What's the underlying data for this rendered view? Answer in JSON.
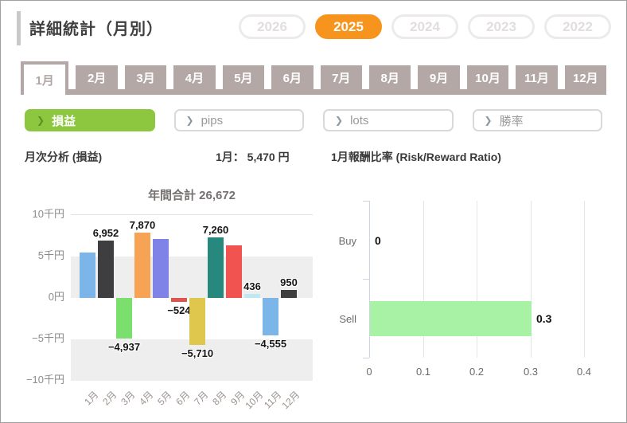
{
  "page": {
    "title": "詳細統計（月別）"
  },
  "years": [
    {
      "label": "2026",
      "active": false
    },
    {
      "label": "2025",
      "active": true
    },
    {
      "label": "2024",
      "active": false
    },
    {
      "label": "2023",
      "active": false
    },
    {
      "label": "2022",
      "active": false
    }
  ],
  "months": [
    {
      "label": "1月",
      "selected": true
    },
    {
      "label": "2月",
      "selected": false
    },
    {
      "label": "3月",
      "selected": false
    },
    {
      "label": "4月",
      "selected": false
    },
    {
      "label": "5月",
      "selected": false
    },
    {
      "label": "6月",
      "selected": false
    },
    {
      "label": "7月",
      "selected": false
    },
    {
      "label": "8月",
      "selected": false
    },
    {
      "label": "9月",
      "selected": false
    },
    {
      "label": "10月",
      "selected": false
    },
    {
      "label": "11月",
      "selected": false
    },
    {
      "label": "12月",
      "selected": false
    }
  ],
  "filters": [
    {
      "label": "損益",
      "active": true
    },
    {
      "label": "pips",
      "active": false
    },
    {
      "label": "lots",
      "active": false
    },
    {
      "label": "勝率",
      "active": false
    }
  ],
  "summary": {
    "left_title": "月次分析 (損益)",
    "month_value": "1月： 5,470 円",
    "right_title": "1月報酬比率 (Risk/Reward Ratio)"
  },
  "colors": {
    "accent_orange": "#f7941d",
    "taupe": "#b3a8a5",
    "filter_green": "#8dc63f",
    "band_gray": "#eeeeee",
    "sell_bar_green": "#a8f2a5"
  },
  "chart_data": [
    {
      "type": "bar",
      "title": "年間合計 26,672",
      "annual_total": 26672,
      "categories": [
        "1月",
        "2月",
        "3月",
        "4月",
        "5月",
        "6月",
        "7月",
        "8月",
        "9月",
        "10月",
        "11月",
        "12月"
      ],
      "values": [
        5470,
        6952,
        -4937,
        7870,
        7150,
        -524,
        -5710,
        7260,
        6310,
        436,
        -4555,
        950
      ],
      "labels": [
        "",
        "6,952",
        "−4,937",
        "7,870",
        "",
        "−524",
        "−5,710",
        "7,260",
        "",
        "436",
        "−4,555",
        "950"
      ],
      "colors": [
        "#7cb5e8",
        "#3e3e40",
        "#7bdf6d",
        "#f7a355",
        "#7f83e8",
        "#e05450",
        "#dfc64d",
        "#27897d",
        "#f05350",
        "#bfe9f2",
        "#7cb5e8",
        "#3e3e40"
      ],
      "ylim": [
        -10000,
        10000
      ],
      "ytick_labels": [
        "10千円",
        "5千円",
        "0円",
        "−5千円",
        "−10千円"
      ],
      "grid": "alternating-bands",
      "ylabel": "",
      "xlabel": ""
    },
    {
      "type": "bar-horizontal",
      "title": "Risk/Reward Ratio",
      "categories": [
        "Buy",
        "Sell"
      ],
      "values": [
        0,
        0.3
      ],
      "labels": [
        "0",
        "0.3"
      ],
      "bar_color": "#a8f2a5",
      "xlim": [
        0,
        0.41
      ],
      "xticks": [
        0,
        0.1,
        0.2,
        0.3,
        0.4
      ],
      "xtick_labels": [
        "0",
        "0.1",
        "0.2",
        "0.3",
        "0.4"
      ],
      "grid": "vertical-lines"
    }
  ]
}
